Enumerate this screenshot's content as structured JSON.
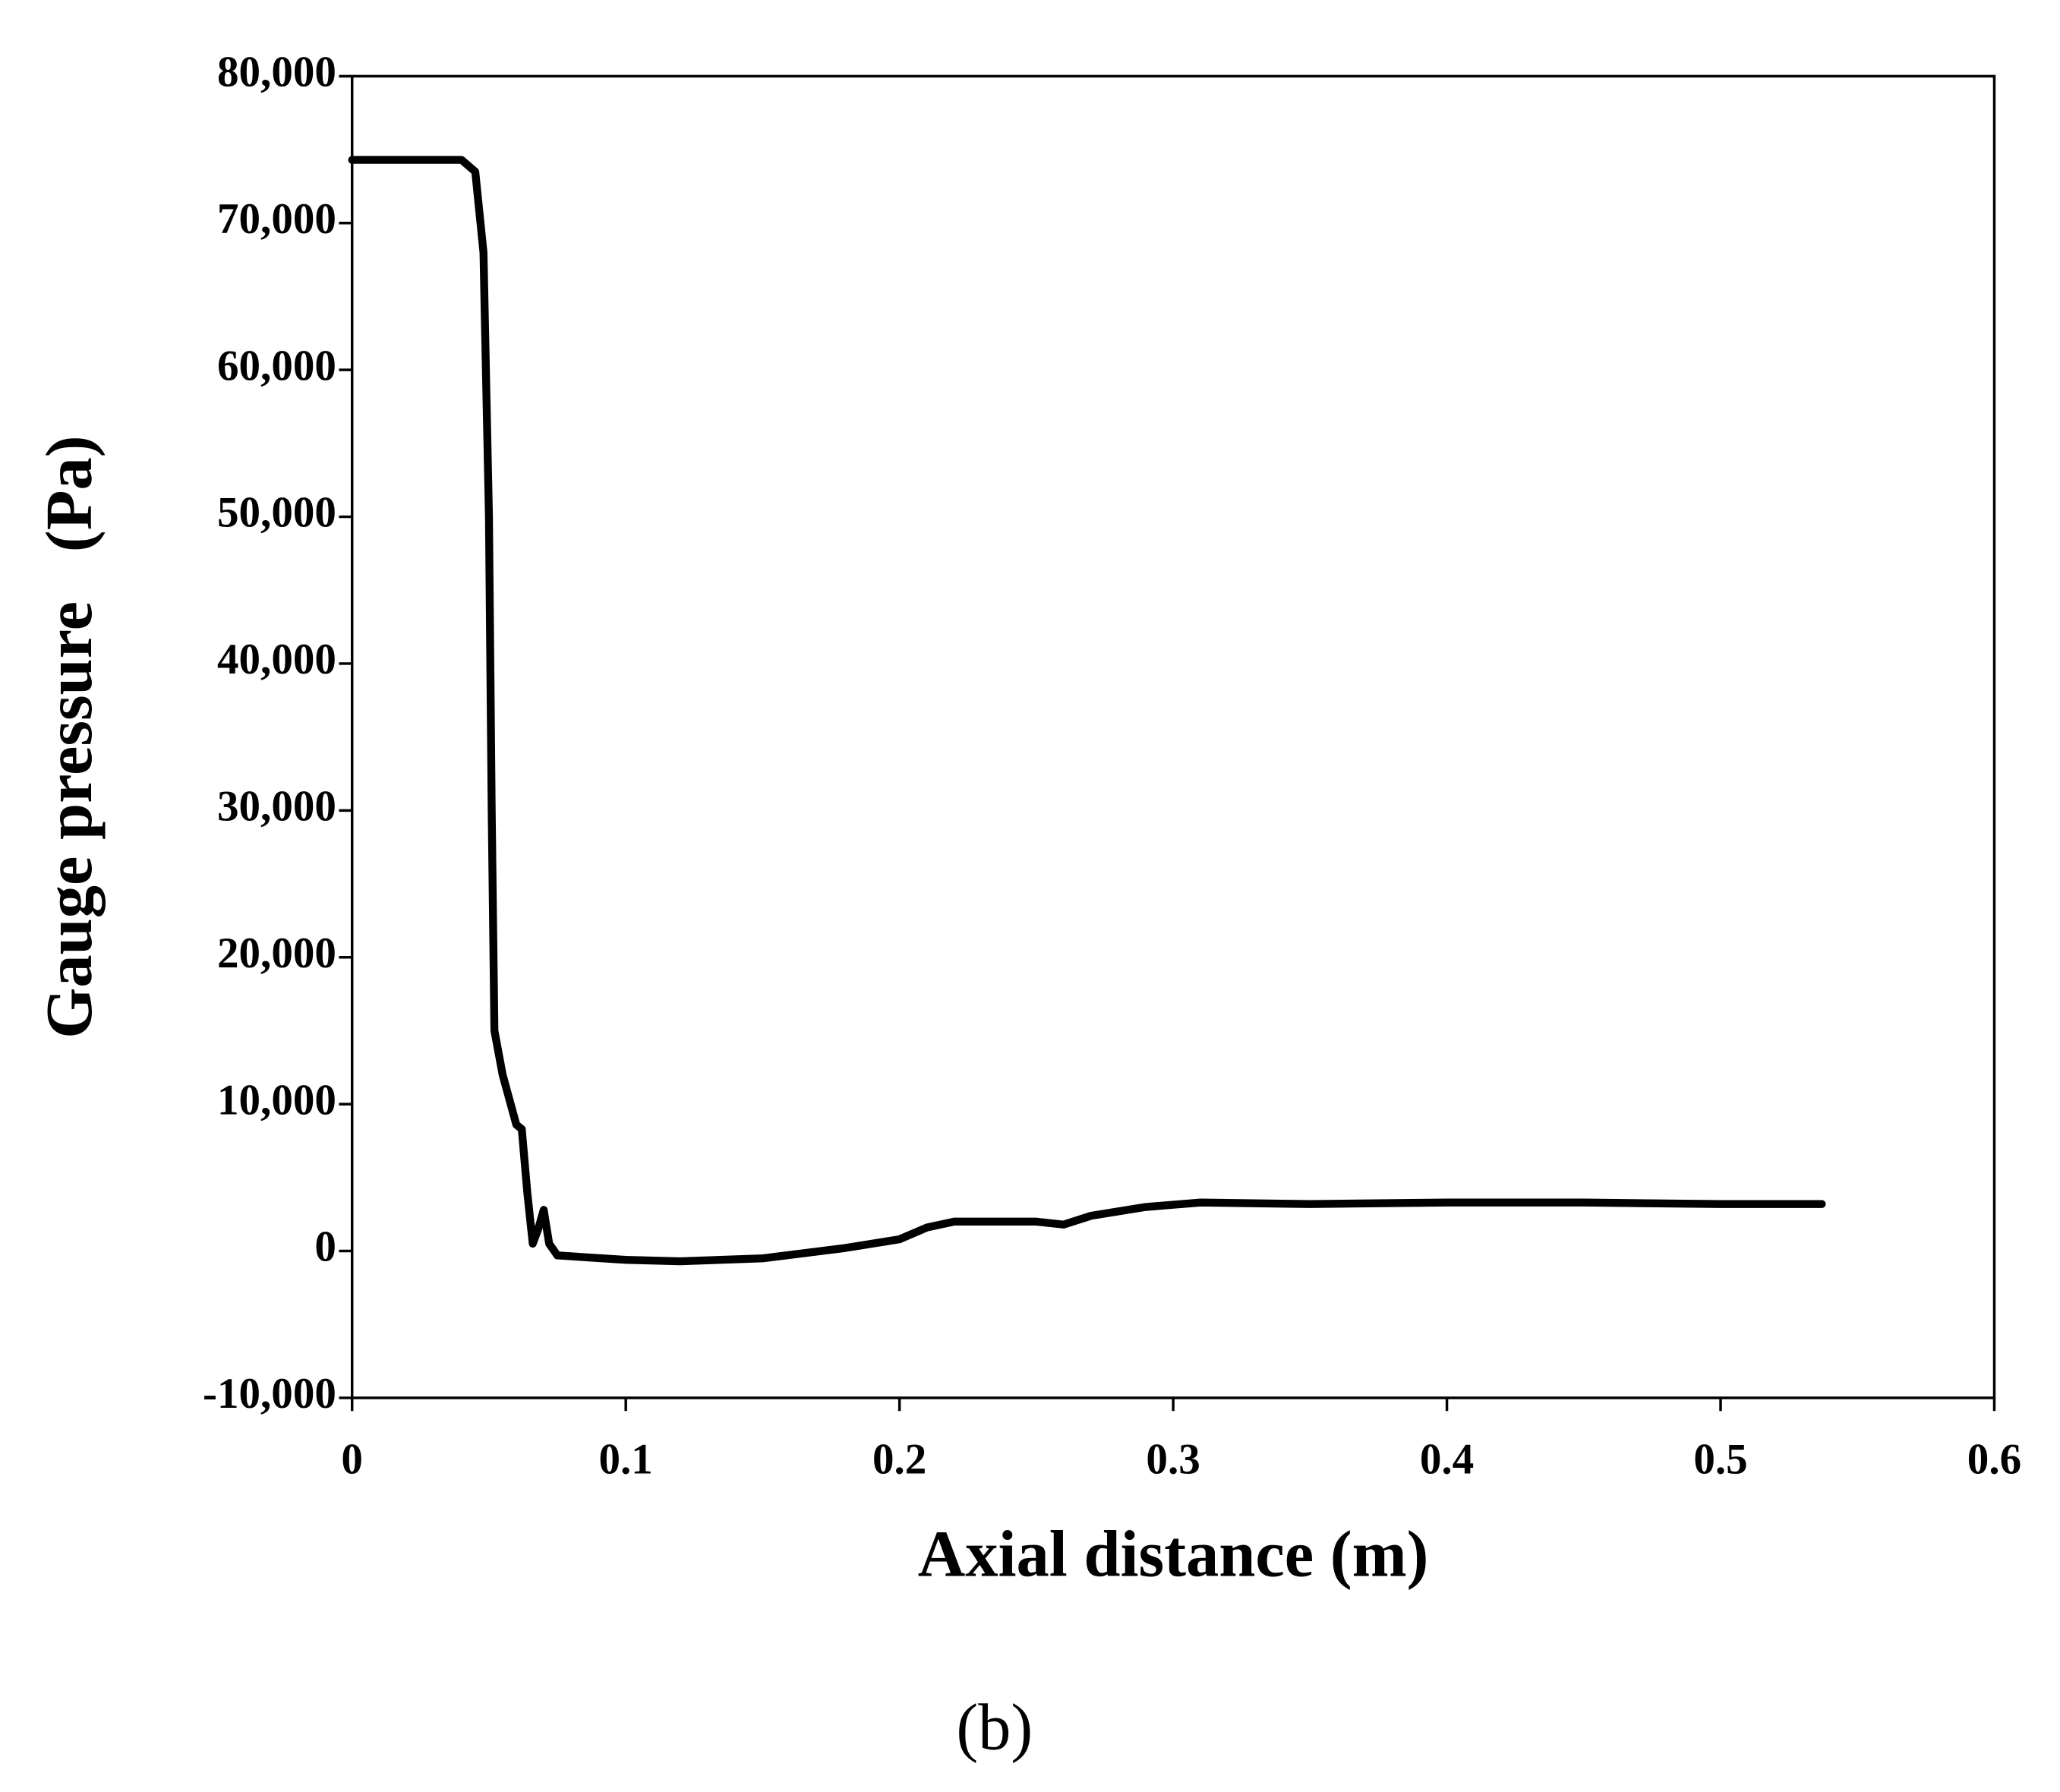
{
  "chart_data": {
    "type": "line",
    "x_label": "Axial distance (m)",
    "y_label": "Gauge pressure   (Pa)",
    "caption": "(b)",
    "x": [
      0,
      0.04,
      0.045,
      0.048,
      0.05,
      0.051,
      0.052,
      0.055,
      0.06,
      0.062,
      0.064,
      0.066,
      0.068,
      0.07,
      0.072,
      0.075,
      0.1,
      0.12,
      0.15,
      0.18,
      0.2,
      0.21,
      0.22,
      0.25,
      0.26,
      0.27,
      0.29,
      0.31,
      0.35,
      0.4,
      0.45,
      0.5,
      0.537
    ],
    "series": [
      {
        "color": "#000000",
        "values": [
          74300,
          74300,
          73500,
          68000,
          50000,
          30000,
          15000,
          12000,
          8600,
          8300,
          4000,
          500,
          1500,
          2800,
          500,
          -300,
          -600,
          -700,
          -500,
          200,
          800,
          1600,
          2000,
          2000,
          1800,
          2400,
          3000,
          3300,
          3200,
          3300,
          3300,
          3200,
          3200
        ]
      }
    ],
    "xlim": [
      0,
      0.6
    ],
    "xticks": [
      0,
      0.1,
      0.2,
      0.3,
      0.4,
      0.5,
      0.6
    ],
    "ylim": [
      -10000,
      80000
    ],
    "yticks": [
      {
        "value": -10000,
        "label": "-10,000"
      },
      0,
      {
        "value": 10000,
        "label": "10,000"
      },
      {
        "value": 20000,
        "label": "20,000"
      },
      {
        "value": 30000,
        "label": "30,000"
      },
      {
        "value": 40000,
        "label": "40,000"
      },
      {
        "value": 50000,
        "label": "50,000"
      },
      {
        "value": 60000,
        "label": "60,000"
      },
      {
        "value": 70000,
        "label": "70,000"
      },
      {
        "value": 80000,
        "label": "80,000"
      }
    ],
    "grid": false
  }
}
